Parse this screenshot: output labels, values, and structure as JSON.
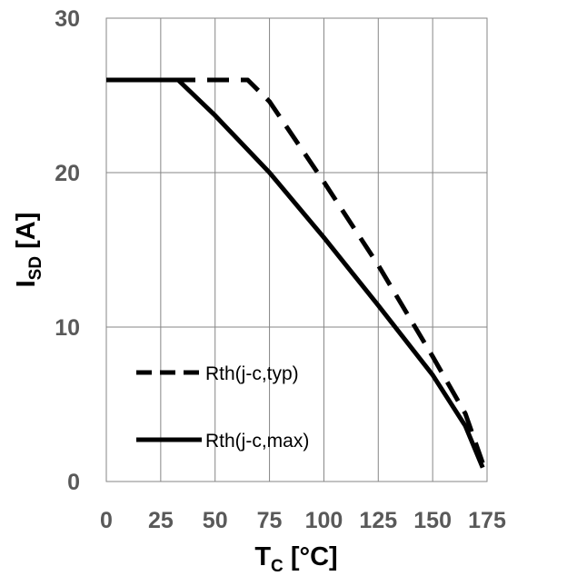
{
  "chart_data": {
    "type": "line",
    "title": "",
    "xlabel": {
      "main": "T",
      "sub": "C",
      "unit": " [°C]"
    },
    "ylabel": {
      "main": "I",
      "sub": "SD",
      "unit": " [A]"
    },
    "xlim": [
      0,
      175
    ],
    "ylim": [
      0,
      30
    ],
    "xticks": [
      0,
      25,
      50,
      75,
      100,
      125,
      150,
      175
    ],
    "yticks": [
      0,
      10,
      20,
      30
    ],
    "xtick_labels": [
      "0",
      "25",
      "50",
      "75",
      "100",
      "125",
      "150",
      "175"
    ],
    "ytick_labels": [
      "0",
      "10",
      "20",
      "30"
    ],
    "grid": true,
    "legend_position": "bottom-left",
    "series": [
      {
        "name": "Rth(j-c,typ)",
        "style": "dashed",
        "color": "#000000",
        "x": [
          0,
          25,
          65,
          75,
          100,
          125,
          150,
          165,
          173
        ],
        "y": [
          26,
          26,
          26,
          24.6,
          19.4,
          14,
          8.1,
          4.4,
          1.2
        ]
      },
      {
        "name": "Rth(j-c,max)",
        "style": "solid",
        "color": "#000000",
        "x": [
          0,
          25,
          33,
          50,
          75,
          100,
          125,
          150,
          165,
          173
        ],
        "y": [
          26,
          26,
          26,
          23.7,
          20,
          15.8,
          11.4,
          6.9,
          3.6,
          0.9
        ]
      }
    ]
  }
}
